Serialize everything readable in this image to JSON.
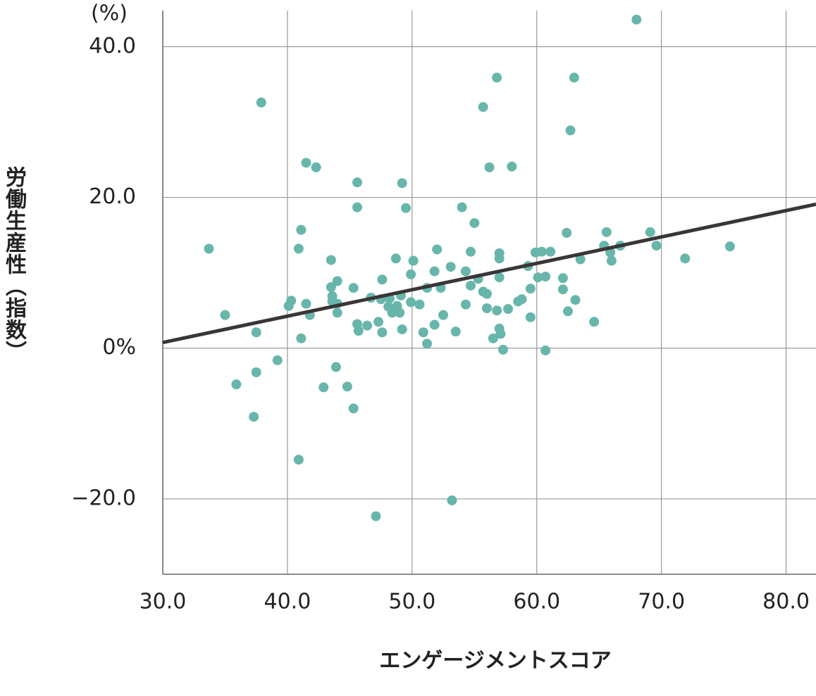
{
  "chart_data": {
    "type": "scatter",
    "y_unit": "(%)",
    "y_label": "労働生産性（指数）",
    "x_label": "エンゲージメントスコア",
    "xlim": [
      30,
      82.4
    ],
    "ylim": [
      -30,
      44.8
    ],
    "xticks": [
      {
        "value": 30,
        "label": "30.0"
      },
      {
        "value": 40,
        "label": "40.0"
      },
      {
        "value": 50,
        "label": "50.0"
      },
      {
        "value": 60,
        "label": "60.0"
      },
      {
        "value": 70,
        "label": "70.0"
      },
      {
        "value": 80,
        "label": "80.0"
      }
    ],
    "yticks": [
      {
        "value": -20,
        "label": "−20.0"
      },
      {
        "value": 0,
        "label": "0%"
      },
      {
        "value": 20,
        "label": "20.0"
      },
      {
        "value": 40,
        "label": "40.0"
      }
    ],
    "grid": true,
    "color": "#68b6ab",
    "x": [
      33.7,
      35.0,
      35.9,
      37.3,
      37.5,
      37.5,
      37.9,
      39.2,
      40.1,
      40.3,
      40.9,
      41.1,
      41.1,
      40.9,
      41.5,
      41.5,
      41.8,
      42.3,
      42.9,
      43.5,
      43.5,
      43.6,
      43.6,
      44.0,
      44.0,
      44.0,
      43.9,
      44.8,
      45.3,
      45.3,
      45.6,
      45.6,
      45.6,
      45.7,
      46.4,
      46.7,
      47.1,
      47.3,
      47.5,
      47.6,
      47.6,
      48.1,
      48.2,
      48.4,
      48.7,
      48.8,
      49.0,
      49.1,
      49.2,
      49.2,
      49.5,
      49.9,
      49.9,
      50.1,
      50.6,
      50.9,
      51.2,
      51.2,
      51.8,
      51.8,
      52.0,
      52.3,
      52.5,
      53.1,
      53.2,
      53.5,
      54.0,
      54.3,
      54.3,
      54.7,
      54.7,
      55.0,
      55.3,
      55.7,
      55.7,
      56.0,
      56.0,
      56.2,
      56.5,
      56.8,
      56.8,
      57.0,
      57.0,
      57.0,
      57.0,
      57.1,
      57.3,
      57.7,
      58.0,
      58.5,
      58.8,
      59.3,
      59.5,
      59.5,
      59.9,
      60.1,
      60.4,
      60.7,
      60.7,
      61.1,
      62.1,
      62.1,
      62.4,
      62.5,
      62.7,
      63.0,
      63.1,
      63.5,
      64.6,
      65.4,
      65.6,
      65.9,
      66.0,
      66.7,
      68.0,
      69.1,
      69.6,
      71.9,
      75.5
    ],
    "values": [
      13.2,
      4.4,
      -4.8,
      -9.1,
      2.1,
      -3.2,
      32.6,
      -1.6,
      5.6,
      6.3,
      13.2,
      15.7,
      1.3,
      -14.8,
      24.6,
      5.9,
      4.4,
      24.0,
      -5.2,
      11.7,
      8.1,
      6.9,
      6.2,
      8.9,
      5.9,
      4.7,
      -2.5,
      -5.1,
      8.0,
      -8.0,
      22.0,
      18.7,
      3.2,
      2.3,
      3.0,
      6.7,
      -22.3,
      3.5,
      6.5,
      9.1,
      2.1,
      5.5,
      6.6,
      4.7,
      11.9,
      5.6,
      4.7,
      7.0,
      2.5,
      21.9,
      18.6,
      9.8,
      6.1,
      11.6,
      5.8,
      2.1,
      0.6,
      8.0,
      10.2,
      3.1,
      13.1,
      8.0,
      4.4,
      10.8,
      -20.2,
      2.2,
      18.7,
      10.2,
      5.8,
      12.8,
      8.3,
      16.6,
      9.2,
      32.0,
      7.5,
      7.2,
      5.3,
      24.0,
      1.3,
      5.0,
      35.9,
      12.6,
      11.9,
      9.4,
      2.6,
      1.9,
      -0.2,
      5.2,
      24.1,
      6.2,
      6.5,
      10.9,
      7.9,
      4.1,
      12.7,
      9.4,
      12.8,
      9.5,
      -0.3,
      12.8,
      9.3,
      7.8,
      15.3,
      4.9,
      28.9,
      35.9,
      6.4,
      11.8,
      3.5,
      13.6,
      15.4,
      12.7,
      11.6,
      13.6,
      43.6,
      15.4,
      13.6,
      11.9,
      13.5
    ],
    "trendline": {
      "x": [
        30,
        82.4
      ],
      "y": [
        0.75,
        19.1
      ],
      "color": "#3a3536"
    }
  }
}
